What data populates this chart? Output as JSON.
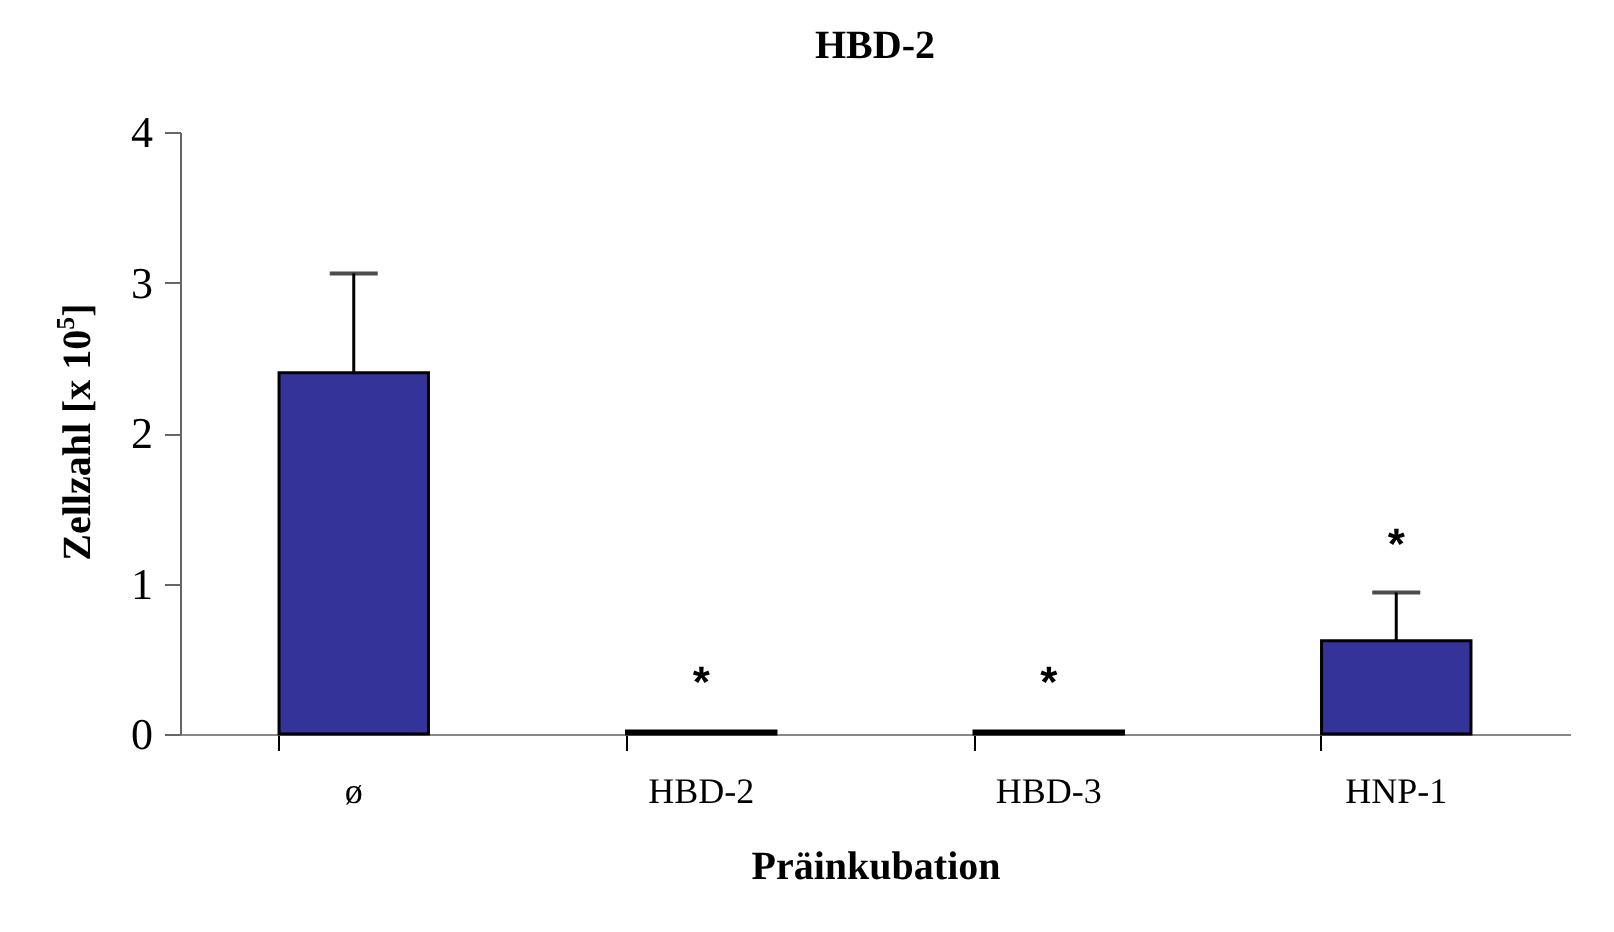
{
  "chart_data": {
    "type": "bar",
    "title": "HBD-2",
    "xlabel": "Präinkubation",
    "ylabel": "Zellzahl [x 10$^{5}$]",
    "categories": [
      "ø",
      "HBD-2",
      "HBD-3",
      "HNP-1"
    ],
    "values": [
      2.4,
      0.02,
      0.02,
      0.62
    ],
    "errors": [
      [
        2.4,
        3.06
      ],
      null,
      null,
      [
        0.62,
        0.94
      ]
    ],
    "color": "#333399",
    "ylim": [
      0,
      4
    ],
    "yticks": [
      0,
      1,
      2,
      3,
      4
    ],
    "grid": false,
    "annotations": [
      {
        "text": "*",
        "x": "HBD-2",
        "y": 0.02
      },
      {
        "text": "*",
        "x": "HBD-3",
        "y": 0.02
      },
      {
        "text": "*",
        "x": "HNP-1",
        "y": 0.94
      }
    ]
  }
}
